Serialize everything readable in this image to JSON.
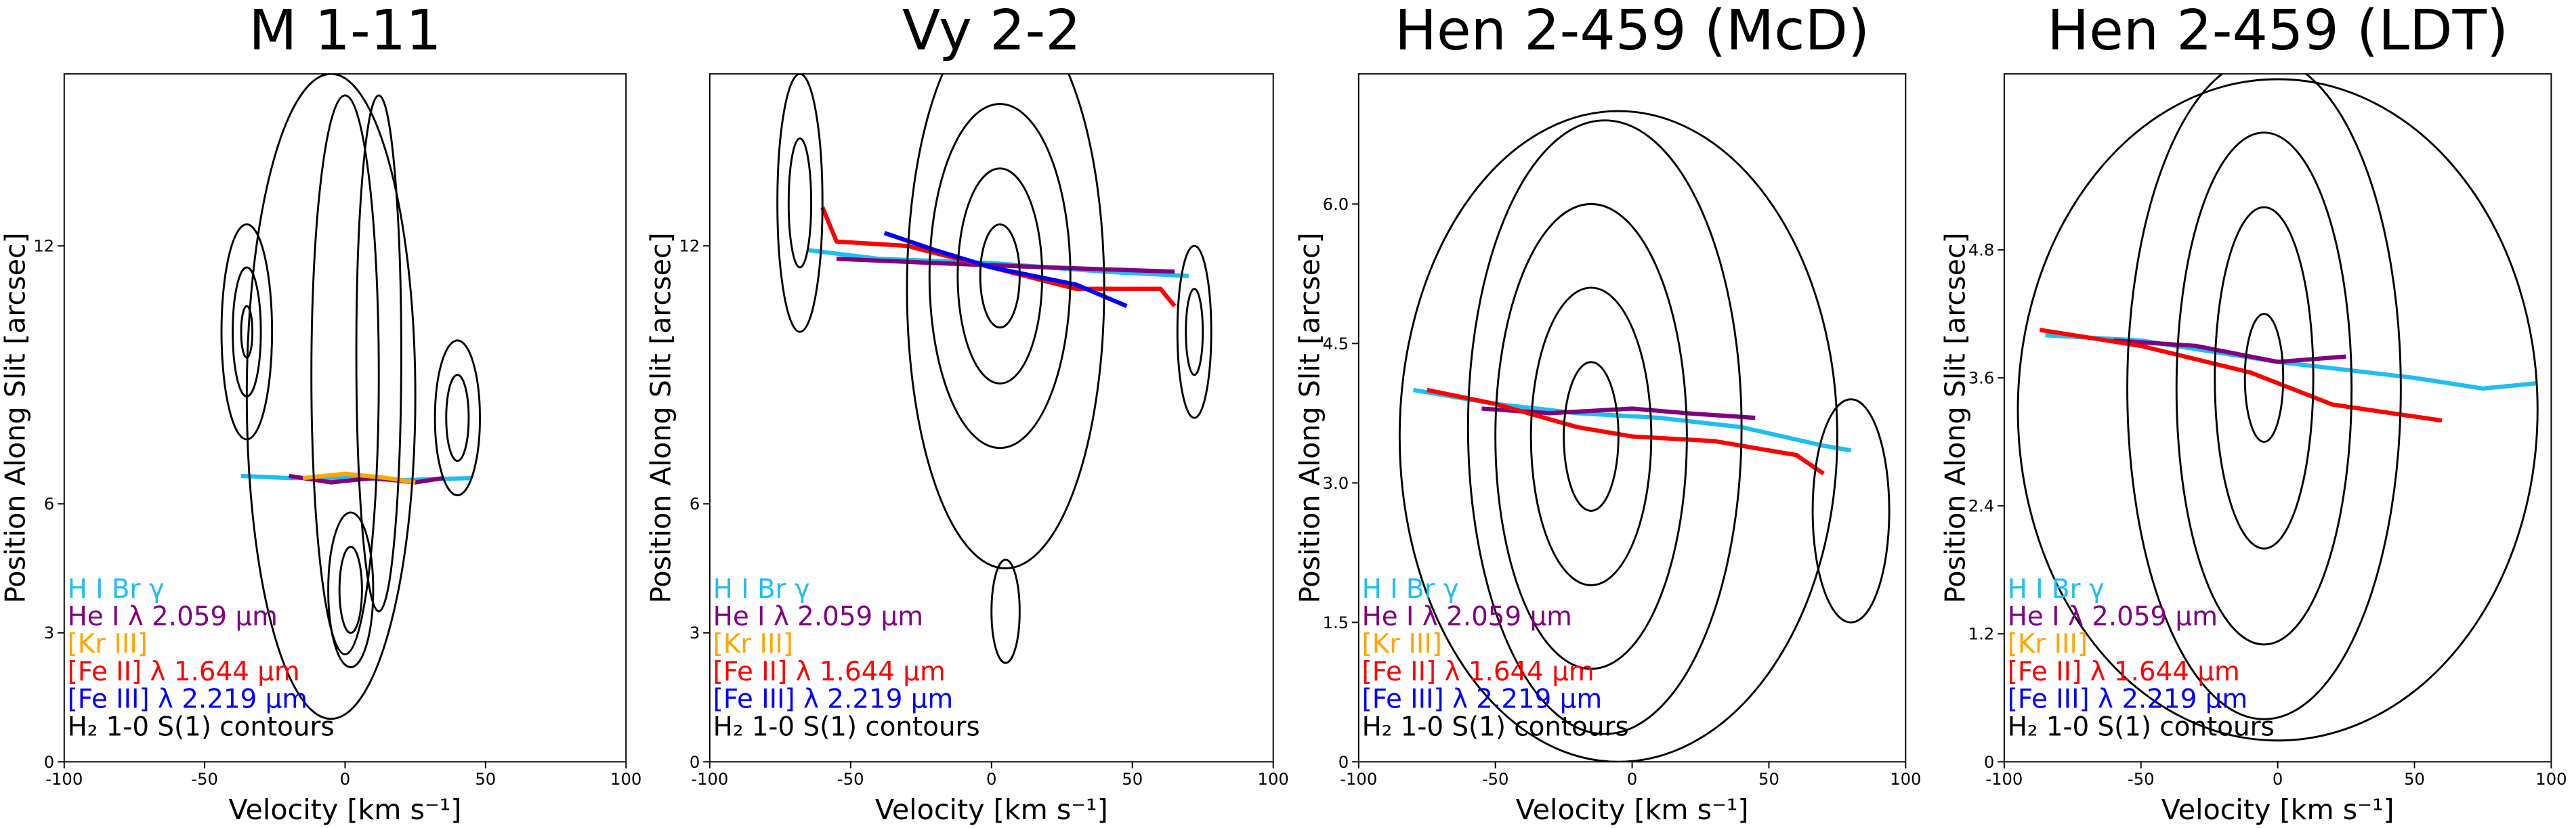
{
  "chart_data": [
    {
      "type": "line",
      "title": "M 1-11",
      "xlabel": "Velocity [km s⁻¹]",
      "ylabel": "Position Along Slit [arcsec]",
      "xlim": [
        -100,
        100
      ],
      "xticks": [
        -100,
        -50,
        0,
        50,
        100
      ],
      "ylim": [
        0,
        16
      ],
      "yticks": [
        0,
        3,
        6,
        12
      ],
      "series": [
        {
          "name": "H I Br γ",
          "color": "#1ebef0",
          "x": [
            -37,
            -20,
            0,
            20,
            45
          ],
          "values": [
            6.65,
            6.6,
            6.6,
            6.55,
            6.6
          ]
        },
        {
          "name": "He I λ 2.059 μm",
          "color": "#800080",
          "x": [
            -20,
            -5,
            10,
            25,
            35
          ],
          "values": [
            6.65,
            6.5,
            6.6,
            6.5,
            6.6
          ]
        },
        {
          "name": "[Kr III]",
          "color": "#ffa500",
          "x": [
            -15,
            0,
            15,
            25
          ],
          "values": [
            6.6,
            6.7,
            6.6,
            6.5
          ]
        },
        {
          "name": "[Fe II] λ 1.644 μm",
          "color": "#ff0000",
          "x": [],
          "values": []
        },
        {
          "name": "[Fe III] λ 2.219 μm",
          "color": "#0000ff",
          "x": [],
          "values": []
        },
        {
          "name": "H₂ 1-0 S(1) contours",
          "color": "#000000",
          "contours": [
            {
              "cx": -5,
              "cy": 8.5,
              "rx": 30,
              "ry": 7.5
            },
            {
              "cx": 0,
              "cy": 9,
              "rx": 12,
              "ry": 6.5
            },
            {
              "cx": 12,
              "cy": 9.5,
              "rx": 8,
              "ry": 6
            },
            {
              "cx": -35,
              "cy": 10,
              "rx": 9,
              "ry": 2.5
            },
            {
              "cx": -35,
              "cy": 10,
              "rx": 5,
              "ry": 1.5
            },
            {
              "cx": -35,
              "cy": 10,
              "rx": 2,
              "ry": 0.6
            },
            {
              "cx": 40,
              "cy": 8,
              "rx": 8,
              "ry": 1.8
            },
            {
              "cx": 40,
              "cy": 8,
              "rx": 4,
              "ry": 1
            },
            {
              "cx": 2,
              "cy": 4,
              "rx": 8,
              "ry": 1.8
            },
            {
              "cx": 2,
              "cy": 4,
              "rx": 4,
              "ry": 1
            }
          ]
        }
      ]
    },
    {
      "type": "line",
      "title": "Vy 2-2",
      "xlabel": "Velocity [km s⁻¹]",
      "ylabel": "Position Along Slit [arcsec]",
      "xlim": [
        -100,
        100
      ],
      "xticks": [
        -100,
        -50,
        0,
        50,
        100
      ],
      "ylim": [
        0,
        16
      ],
      "yticks": [
        0,
        3,
        6,
        12
      ],
      "series": [
        {
          "name": "H I Br γ",
          "color": "#1ebef0",
          "x": [
            -65,
            -40,
            0,
            40,
            70
          ],
          "values": [
            11.9,
            11.7,
            11.6,
            11.4,
            11.3
          ]
        },
        {
          "name": "He I λ 2.059 μm",
          "color": "#800080",
          "x": [
            -55,
            -20,
            20,
            65
          ],
          "values": [
            11.7,
            11.6,
            11.5,
            11.4
          ]
        },
        {
          "name": "[Kr III]",
          "color": "#ffa500",
          "x": [],
          "values": []
        },
        {
          "name": "[Fe II] λ 1.644 μm",
          "color": "#ff0000",
          "x": [
            -60,
            -55,
            -30,
            0,
            30,
            60,
            65
          ],
          "values": [
            12.9,
            12.1,
            12.0,
            11.5,
            11.0,
            11.0,
            10.6
          ]
        },
        {
          "name": "[Fe III] λ 2.219 μm",
          "color": "#0000ff",
          "x": [
            -38,
            -20,
            0,
            30,
            48
          ],
          "values": [
            12.3,
            11.9,
            11.5,
            11.1,
            10.6
          ]
        },
        {
          "name": "H₂ 1-0 S(1) contours",
          "color": "#000000",
          "contours": [
            {
              "cx": 5,
              "cy": 11,
              "rx": 35,
              "ry": 6.5
            },
            {
              "cx": 3,
              "cy": 11.3,
              "rx": 25,
              "ry": 4
            },
            {
              "cx": 3,
              "cy": 11.3,
              "rx": 15,
              "ry": 2.5
            },
            {
              "cx": 3,
              "cy": 11.3,
              "rx": 7,
              "ry": 1.2
            },
            {
              "cx": -68,
              "cy": 13,
              "rx": 8,
              "ry": 3
            },
            {
              "cx": -68,
              "cy": 13,
              "rx": 4,
              "ry": 1.5
            },
            {
              "cx": 72,
              "cy": 10,
              "rx": 6,
              "ry": 2
            },
            {
              "cx": 72,
              "cy": 10,
              "rx": 3,
              "ry": 1
            },
            {
              "cx": 5,
              "cy": 3.5,
              "rx": 5,
              "ry": 1.2
            }
          ]
        }
      ]
    },
    {
      "type": "line",
      "title": "Hen 2-459 (McD)",
      "xlabel": "Velocity [km s⁻¹]",
      "ylabel": "Position Along Slit [arcsec]",
      "xlim": [
        -100,
        100
      ],
      "xticks": [
        -100,
        -50,
        0,
        50,
        100
      ],
      "ylim": [
        0,
        7.4
      ],
      "yticks": [
        0,
        1.5,
        {
          "value": 3,
          "label": "3.0"
        },
        4.5,
        {
          "value": 6,
          "label": "6.0"
        }
      ],
      "series": [
        {
          "name": "H I Br γ",
          "color": "#1ebef0",
          "x": [
            -80,
            -50,
            -20,
            10,
            40,
            70,
            80
          ],
          "values": [
            4.0,
            3.85,
            3.75,
            3.7,
            3.6,
            3.4,
            3.35
          ]
        },
        {
          "name": "He I λ 2.059 μm",
          "color": "#800080",
          "x": [
            -55,
            -30,
            0,
            20,
            45
          ],
          "values": [
            3.8,
            3.75,
            3.8,
            3.75,
            3.7
          ]
        },
        {
          "name": "[Kr III]",
          "color": "#ffa500",
          "x": [],
          "values": []
        },
        {
          "name": "[Fe II] λ 1.644 μm",
          "color": "#ff0000",
          "x": [
            -75,
            -50,
            -20,
            0,
            30,
            60,
            70
          ],
          "values": [
            4.0,
            3.85,
            3.6,
            3.5,
            3.45,
            3.3,
            3.1
          ]
        },
        {
          "name": "[Fe III] λ 2.219 μm",
          "color": "#0000ff",
          "x": [],
          "values": []
        },
        {
          "name": "H₂ 1-0 S(1) contours",
          "color": "#000000",
          "contours": [
            {
              "cx": -5,
              "cy": 3.5,
              "rx": 80,
              "ry": 3.5
            },
            {
              "cx": -10,
              "cy": 3.6,
              "rx": 50,
              "ry": 3.3
            },
            {
              "cx": -15,
              "cy": 3.5,
              "rx": 35,
              "ry": 2.5
            },
            {
              "cx": -15,
              "cy": 3.5,
              "rx": 22,
              "ry": 1.6
            },
            {
              "cx": -15,
              "cy": 3.5,
              "rx": 10,
              "ry": 0.8
            },
            {
              "cx": 80,
              "cy": 2.7,
              "rx": 14,
              "ry": 1.2
            }
          ]
        }
      ]
    },
    {
      "type": "line",
      "title": "Hen 2-459 (LDT)",
      "xlabel": "Velocity [km s⁻¹]",
      "ylabel": "Position Along Slit [arcsec]",
      "xlim": [
        -100,
        100
      ],
      "xticks": [
        -100,
        -50,
        0,
        50,
        100
      ],
      "ylim": [
        0,
        6.45
      ],
      "yticks": [
        0,
        1.2,
        2.4,
        3.6,
        4.8
      ],
      "series": [
        {
          "name": "H I Br γ",
          "color": "#1ebef0",
          "x": [
            -85,
            -50,
            0,
            50,
            75,
            95
          ],
          "values": [
            4.0,
            3.95,
            3.75,
            3.6,
            3.5,
            3.55
          ]
        },
        {
          "name": "He I λ 2.059 μm",
          "color": "#800080",
          "x": [
            -60,
            -30,
            0,
            25
          ],
          "values": [
            3.95,
            3.9,
            3.75,
            3.8
          ]
        },
        {
          "name": "[Kr III]",
          "color": "#ffa500",
          "x": [],
          "values": []
        },
        {
          "name": "[Fe II] λ 1.644 μm",
          "color": "#ff0000",
          "x": [
            -87,
            -50,
            -10,
            20,
            60
          ],
          "values": [
            4.05,
            3.9,
            3.65,
            3.35,
            3.2
          ]
        },
        {
          "name": "[Fe III] λ 2.219 μm",
          "color": "#0000ff",
          "x": [],
          "values": []
        },
        {
          "name": "H₂ 1-0 S(1) contours",
          "color": "#000000",
          "contours": [
            {
              "cx": 0,
              "cy": 3.3,
              "rx": 95,
              "ry": 3.1
            },
            {
              "cx": -5,
              "cy": 3.5,
              "rx": 50,
              "ry": 3.1
            },
            {
              "cx": -5,
              "cy": 3.5,
              "rx": 32,
              "ry": 2.4
            },
            {
              "cx": -5,
              "cy": 3.6,
              "rx": 18,
              "ry": 1.6
            },
            {
              "cx": -5,
              "cy": 3.6,
              "rx": 7,
              "ry": 0.6
            }
          ]
        }
      ]
    }
  ]
}
